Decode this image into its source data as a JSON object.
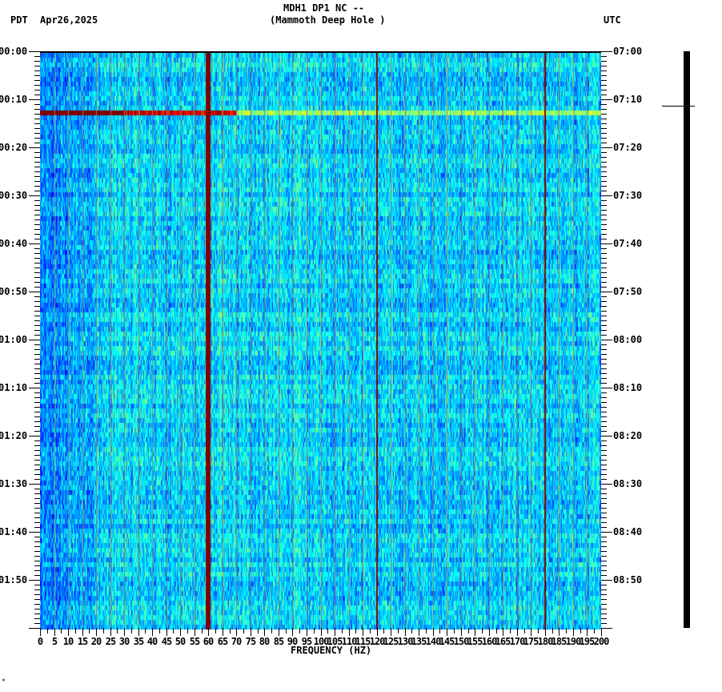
{
  "header": {
    "title_line1": "MDH1 DP1 NC --",
    "title_line2": "(Mammoth Deep Hole )",
    "timezone_left": "PDT",
    "date": "Apr26,2025",
    "timezone_right": "UTC"
  },
  "footer_mark": "*",
  "colors": {
    "power_line": "#800000",
    "harmonic_line": "#800000",
    "grid": "#808080",
    "axis": "#000000"
  },
  "chart_data": {
    "type": "heatmap",
    "title": "MDH1 DP1 NC -- (Mammoth Deep Hole )",
    "xlabel": "FREQUENCY (HZ)",
    "ylabel_left": "PDT",
    "ylabel_right": "UTC",
    "xlim": [
      0,
      200
    ],
    "x_ticks": [
      "0",
      "5",
      "10",
      "15",
      "20",
      "25",
      "30",
      "35",
      "40",
      "45",
      "50",
      "55",
      "60",
      "65",
      "70",
      "75",
      "80",
      "85",
      "90",
      "95",
      "100",
      "105",
      "110",
      "115",
      "120",
      "125",
      "130",
      "135",
      "140",
      "145",
      "150",
      "155",
      "160",
      "165",
      "170",
      "175",
      "180",
      "185",
      "190",
      "195",
      "200"
    ],
    "y_ticks_left": [
      "00:00",
      "00:10",
      "00:20",
      "00:30",
      "00:40",
      "00:50",
      "01:00",
      "01:10",
      "01:20",
      "01:30",
      "01:40",
      "01:50"
    ],
    "y_ticks_right": [
      "07:00",
      "07:10",
      "07:20",
      "07:30",
      "07:40",
      "07:50",
      "08:00",
      "08:10",
      "08:20",
      "08:30",
      "08:40",
      "08:50"
    ],
    "time_span_minutes": 120,
    "colormap": "jet",
    "persistent_lines_hz": [
      60,
      120,
      180
    ],
    "broadband_event_minute": 11.5,
    "arc_events": [
      {
        "end_minute": 22,
        "base_hz": 20
      },
      {
        "end_minute": 44,
        "base_hz": 20
      },
      {
        "end_minute": 60,
        "base_hz": 24
      },
      {
        "end_minute": 86,
        "base_hz": 20
      },
      {
        "end_minute": 108,
        "base_hz": 20
      },
      {
        "end_minute": 125,
        "base_hz": 28
      }
    ],
    "grid": true,
    "grid_spacing_hz": 5
  }
}
